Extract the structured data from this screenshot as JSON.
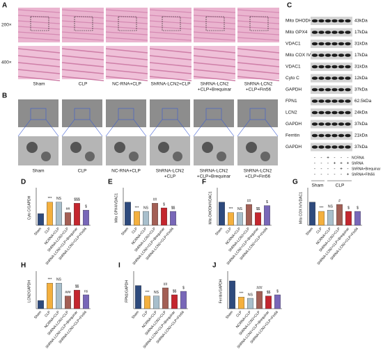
{
  "panel_a": {
    "letter": "A",
    "magnifications": [
      "200×",
      "400×"
    ],
    "groups": [
      [
        "Sham"
      ],
      [
        "CLP"
      ],
      [
        "NC-RNA+CLP"
      ],
      [
        "ShRNA-LCN2+CLP"
      ],
      [
        "ShRNA-LCN2",
        "+CLP+Brequinar"
      ],
      [
        "ShRNA-LCN2",
        "+CLP+Fin56"
      ]
    ]
  },
  "panel_b": {
    "letter": "B",
    "groups": [
      [
        "Sham"
      ],
      [
        "CLP"
      ],
      [
        "NC-RNA+CLP"
      ],
      [
        "ShRNA-LCN2",
        "+CLP"
      ],
      [
        "ShRNA-LCN2",
        "+CLP+Brequinar"
      ],
      [
        "ShRNA-LCN2",
        "+CLP+Fin56"
      ]
    ]
  },
  "panel_c": {
    "letter": "C",
    "blots": [
      {
        "label": "Mito DHODH",
        "size": "43kDa"
      },
      {
        "label": "Mito GPX4",
        "size": "17kDa"
      },
      {
        "label": "VDAC1",
        "size": "31kDa"
      },
      {
        "label": "Mito COX IV",
        "size": "17kDa"
      },
      {
        "label": "VDAC1",
        "size": "31kDa"
      },
      {
        "label": "Cyto C",
        "size": "12kDa"
      },
      {
        "label": "GAPDH",
        "size": "37kDa"
      },
      {
        "label": "FPN1",
        "size": "62.5kDa"
      },
      {
        "label": "LCN2",
        "size": "24kDa"
      },
      {
        "label": "GAPDH",
        "size": "37kDa"
      },
      {
        "label": "Ferritin",
        "size": "21kDa"
      },
      {
        "label": "GAPDH",
        "size": "37kDa"
      }
    ],
    "treatments": [
      {
        "label": "NCRNA",
        "signs": [
          "-",
          "-",
          "+",
          "-",
          "-",
          "-"
        ]
      },
      {
        "label": "ShRNA",
        "signs": [
          "-",
          "-",
          "-",
          "+",
          "+",
          "+"
        ]
      },
      {
        "label": "ShRNA+Brequinar",
        "signs": [
          "-",
          "-",
          "-",
          "-",
          "+",
          "-"
        ]
      },
      {
        "label": "ShRNA+FIN56",
        "signs": [
          "-",
          "-",
          "-",
          "-",
          "-",
          "+"
        ]
      }
    ],
    "groups": [
      "Sham",
      "CLP"
    ]
  },
  "chart_data": [
    {
      "type": "bar",
      "panel": "D",
      "ylabel": "Cyto C/GAPDH",
      "categories": [
        "Sham",
        "CLP",
        "NCRNA+CLP",
        "ShRNA-LCN2+CLP",
        "ShRNA-LCN2+CLP+Brequinar",
        "ShRNA-LCN2+CLP+Fin56"
      ],
      "values": [
        0.5,
        1.0,
        1.0,
        0.55,
        0.95,
        0.65
      ],
      "colors": [
        "#2e4a7d",
        "#f4b03e",
        "#a8bfcc",
        "#a35f55",
        "#c4262e",
        "#7867b8"
      ],
      "annotations": [
        null,
        "***",
        "NS",
        "##",
        "$$$",
        "$"
      ],
      "ylim": [
        0,
        1.5
      ]
    },
    {
      "type": "bar",
      "panel": "E",
      "ylabel": "Mito GPX4/VDAC1",
      "categories": [
        "Sham",
        "CLP",
        "NCRNA+CLP",
        "ShRNA-LCN2+CLP",
        "ShRNA-LCN2+CLP+Brequinar",
        "ShRNA-LCN2+CLP+Fin56"
      ],
      "values": [
        1.0,
        0.6,
        0.6,
        0.95,
        0.75,
        0.6
      ],
      "colors": [
        "#2e4a7d",
        "#f4b03e",
        "#a8bfcc",
        "#a35f55",
        "#c4262e",
        "#7867b8"
      ],
      "annotations": [
        null,
        "***",
        "NS",
        "##",
        "$",
        "$$"
      ],
      "ylim": [
        0,
        1.5
      ]
    },
    {
      "type": "bar",
      "panel": "F",
      "ylabel": "Mito DHODH/VDAC1",
      "categories": [
        "Sham",
        "CLP",
        "NCRNA+CLP",
        "ShRNA-LCN2+CLP",
        "ShRNA-LCN2+CLP+Brequinar",
        "ShRNA-LCN2+CLP+Fin56"
      ],
      "values": [
        1.0,
        0.55,
        0.55,
        0.9,
        0.55,
        0.85
      ],
      "colors": [
        "#2e4a7d",
        "#f4b03e",
        "#a8bfcc",
        "#a35f55",
        "#c4262e",
        "#7867b8"
      ],
      "annotations": [
        null,
        "***",
        "NS",
        "##",
        "$$",
        "$"
      ],
      "ylim": [
        0,
        1.5
      ]
    },
    {
      "type": "bar",
      "panel": "G",
      "ylabel": "Mito COX IV/VDAC1",
      "categories": [
        "Sham",
        "CLP",
        "NCRNA+CLP",
        "ShRNA-LCN2+CLP",
        "ShRNA-LCN2+CLP+Brequinar",
        "ShRNA-LCN2+CLP+Fin56"
      ],
      "values": [
        1.0,
        0.6,
        0.65,
        0.9,
        0.6,
        0.6
      ],
      "colors": [
        "#2e4a7d",
        "#f4b03e",
        "#a8bfcc",
        "#a35f55",
        "#c4262e",
        "#7867b8"
      ],
      "annotations": [
        null,
        "***",
        "NS",
        "#",
        "$",
        "$"
      ],
      "ylim": [
        0,
        1.5
      ]
    },
    {
      "type": "bar",
      "panel": "H",
      "ylabel": "LCN2/GAPDH",
      "categories": [
        "Sham",
        "CLP",
        "NCRNA+CLP",
        "ShRNA-LCN2+CLP",
        "ShRNA-LCN2+CLP+Brequinar",
        "ShRNA-LCN2+CLP+Fin56"
      ],
      "values": [
        0.35,
        1.1,
        1.1,
        0.55,
        0.8,
        0.6
      ],
      "colors": [
        "#2e4a7d",
        "#f4b03e",
        "#a8bfcc",
        "#a35f55",
        "#c4262e",
        "#7867b8"
      ],
      "annotations": [
        null,
        "***",
        "NS",
        "###",
        "$$",
        "ns"
      ],
      "ylim": [
        0,
        1.5
      ]
    },
    {
      "type": "bar",
      "panel": "I",
      "ylabel": "FPN1/GAPDH",
      "categories": [
        "Sham",
        "CLP",
        "NCRNA+CLP",
        "ShRNA-LCN2+CLP",
        "ShRNA-LCN2+CLP+Brequinar",
        "ShRNA-LCN2+CLP+Fin56"
      ],
      "values": [
        1.0,
        0.55,
        0.55,
        0.9,
        0.6,
        0.75
      ],
      "colors": [
        "#2e4a7d",
        "#f4b03e",
        "#a8bfcc",
        "#a35f55",
        "#c4262e",
        "#7867b8"
      ],
      "annotations": [
        null,
        "***",
        "NS",
        "##",
        "$$",
        "$"
      ],
      "ylim": [
        0,
        1.5
      ]
    },
    {
      "type": "bar",
      "panel": "J",
      "ylabel": "Ferritin/GAPDH",
      "categories": [
        "Sham",
        "CLP",
        "NCRNA+CLP",
        "ShRNA-LCN2+CLP",
        "ShRNA-LCN2+CLP+Brequinar",
        "ShRNA-LCN2+CLP+Fin56"
      ],
      "values": [
        1.2,
        0.5,
        0.45,
        0.75,
        0.55,
        0.6
      ],
      "colors": [
        "#2e4a7d",
        "#f4b03e",
        "#a8bfcc",
        "#a35f55",
        "#c4262e",
        "#7867b8"
      ],
      "annotations": [
        null,
        "***",
        "NS",
        "###",
        "$$",
        "$"
      ],
      "ylim": [
        0,
        1.5
      ]
    }
  ]
}
